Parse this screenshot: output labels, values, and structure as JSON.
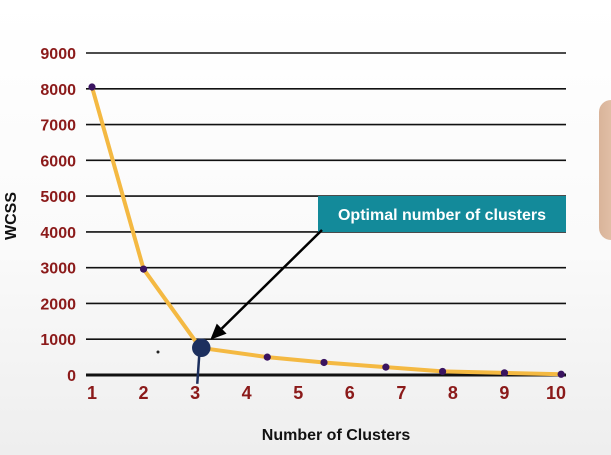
{
  "chart_data": {
    "type": "line",
    "xlabel": "Number of Clusters",
    "ylabel": "WCSS",
    "x_ticks": [
      "1",
      "2",
      "3",
      "4",
      "5",
      "6",
      "7",
      "8",
      "9",
      "10"
    ],
    "y_ticks": [
      "0",
      "1000",
      "2000",
      "3000",
      "4000",
      "5000",
      "6000",
      "7000",
      "8000",
      "9000"
    ],
    "xlim": [
      1,
      10
    ],
    "ylim": [
      0,
      9000
    ],
    "grid": "horizontal",
    "series": [
      {
        "x": [
          1,
          2,
          3.1,
          4.4,
          5.5,
          6.7,
          7.8,
          9.0,
          10.1
        ],
        "y": [
          8050,
          2960,
          760,
          500,
          350,
          220,
          100,
          60,
          20
        ]
      }
    ],
    "annotation": {
      "text": "Optimal number of clusters",
      "points_to": [
        3.1,
        760
      ]
    },
    "colors": {
      "line": "#f4b942",
      "marker": "#3a1460",
      "tick_labels": "#8b1a1a",
      "callout_bg": "#138a9a",
      "elbow": "#1c2f5e"
    }
  }
}
